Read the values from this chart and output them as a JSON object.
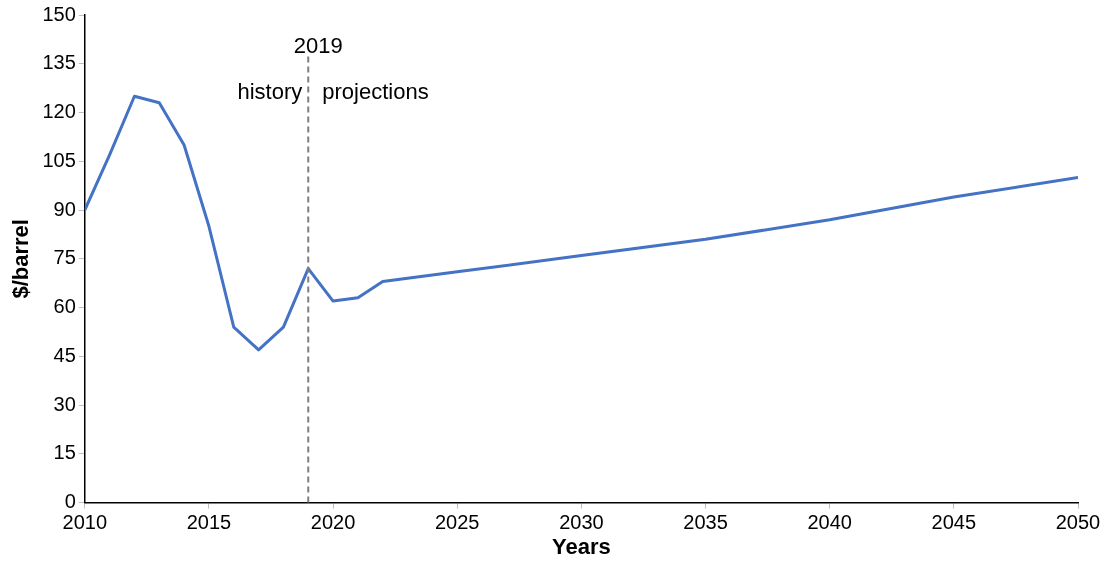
{
  "chart_data": {
    "type": "line",
    "xlabel": "Years",
    "ylabel": "$/barrel",
    "x": [
      2010,
      2011,
      2012,
      2013,
      2014,
      2015,
      2016,
      2017,
      2018,
      2019,
      2020,
      2021,
      2022,
      2025,
      2030,
      2035,
      2040,
      2045,
      2050
    ],
    "series": [
      {
        "color": "#4472c4",
        "values": [
          90,
          107,
          125,
          123,
          110,
          85,
          54,
          47,
          54,
          72,
          62,
          63,
          68,
          71,
          76,
          81,
          87,
          94,
          100
        ]
      }
    ],
    "xlim": [
      2010,
      2050
    ],
    "xticks": [
      2010,
      2015,
      2020,
      2025,
      2030,
      2035,
      2040,
      2045,
      2050
    ],
    "ylim": [
      0,
      150
    ],
    "yticks": [
      0,
      15,
      30,
      45,
      60,
      75,
      90,
      105,
      120,
      135,
      150
    ],
    "ref_lines": [
      {
        "axis": "x",
        "value": 2019,
        "label": "2019",
        "color": "#7f7f7f",
        "line_style": "dashed"
      }
    ],
    "annotations": [
      "history",
      "projections"
    ],
    "grid": false,
    "legend": false,
    "marker": "none",
    "line_style": "solid"
  }
}
